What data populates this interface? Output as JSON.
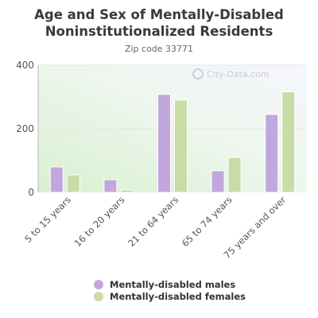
{
  "chart_data": {
    "type": "bar",
    "title": "Age and Sex of Mentally-Disabled Noninstitutionalized Residents",
    "subtitle": "Zip code 33771",
    "categories": [
      "5 to 15 years",
      "16 to 20 years",
      "21 to 64 years",
      "65 to 74 years",
      "75 years and over"
    ],
    "series": [
      {
        "name": "Mentally-disabled males",
        "color": "#c0a8dc",
        "values": [
          80,
          40,
          308,
          68,
          245
        ]
      },
      {
        "name": "Mentally-disabled females",
        "color": "#c8dca8",
        "values": [
          55,
          8,
          290,
          110,
          316
        ]
      }
    ],
    "yticks": [
      0,
      200,
      400
    ],
    "ylim": [
      0,
      400
    ],
    "grid": true,
    "legend_position": "bottom",
    "watermark": "City-Data.com"
  }
}
